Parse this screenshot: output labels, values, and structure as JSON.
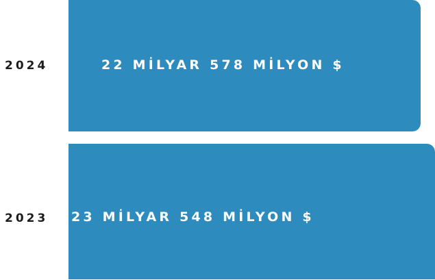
{
  "rows": [
    {
      "year": "2024",
      "amount": "22 MİLYAR 578 MİLYON $"
    },
    {
      "year": "2023",
      "amount": "23 MİLYAR 548 MİLYON $"
    }
  ]
}
